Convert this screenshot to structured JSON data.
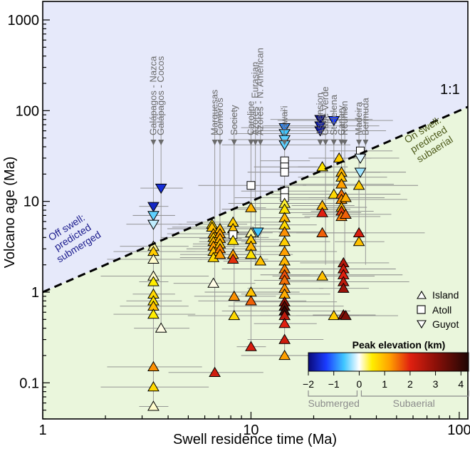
{
  "chart_data": {
    "type": "scatter",
    "xlabel": "Swell residence time (Ma)",
    "ylabel": "Volcano age (Ma)",
    "xscale": "log",
    "yscale": "log",
    "xlim": [
      1,
      110
    ],
    "ylim": [
      0.04,
      1600
    ],
    "x_ticks": [
      {
        "value": 1,
        "label": "1"
      },
      {
        "value": 10,
        "label": "10"
      },
      {
        "value": 100,
        "label": "100"
      }
    ],
    "y_ticks": [
      {
        "value": 0.1,
        "label": "0.1"
      },
      {
        "value": 1,
        "label": "1"
      },
      {
        "value": 10,
        "label": "10"
      },
      {
        "value": 100,
        "label": "100"
      },
      {
        "value": 1000,
        "label": "1000"
      }
    ],
    "one_to_one_label": "1:1",
    "region_upper": {
      "lines": [
        "Off swell:",
        "predicted",
        "submerged"
      ],
      "color": "#1a1a8c",
      "fill": "#e6e9fa"
    },
    "region_lower": {
      "lines": [
        "On swell:",
        "predicted",
        "subaerial"
      ],
      "color": "#4d5a1a",
      "fill": "#eaf6dc"
    },
    "legend": [
      {
        "marker": "triangle-up",
        "label": "Island"
      },
      {
        "marker": "square",
        "label": "Atoll"
      },
      {
        "marker": "triangle-down",
        "label": "Guyot"
      }
    ],
    "colorbar": {
      "title": "Peak elevation (km)",
      "min": -2,
      "max": 4.3,
      "ticks": [
        {
          "value": -2,
          "label": "−2"
        },
        {
          "value": -1,
          "label": "−1"
        },
        {
          "value": 0,
          "label": "0"
        },
        {
          "value": 1,
          "label": "1"
        },
        {
          "value": 2,
          "label": "2"
        },
        {
          "value": 3,
          "label": "3"
        },
        {
          "value": 4,
          "label": "4"
        }
      ],
      "group_submerged": "Submerged",
      "group_subaerial": "Subaerial",
      "stops": [
        {
          "v": -2,
          "c": "#0a0a78"
        },
        {
          "v": -1.3,
          "c": "#1a3cff"
        },
        {
          "v": -0.6,
          "c": "#3fc6ff"
        },
        {
          "v": 0,
          "c": "#ffffff"
        },
        {
          "v": 0.5,
          "c": "#ffee00"
        },
        {
          "v": 1.2,
          "c": "#ffa000"
        },
        {
          "v": 2,
          "c": "#e02010"
        },
        {
          "v": 3,
          "c": "#8c1008"
        },
        {
          "v": 4.3,
          "c": "#1e0604"
        }
      ]
    },
    "hotspots": [
      {
        "name": "Galápagos - Nazca",
        "x": 3.4
      },
      {
        "name": "Galápagos - Cocos",
        "x": 3.7
      },
      {
        "name": "Marquesas",
        "x": 6.7
      },
      {
        "name": "Comoros",
        "x": 7.1
      },
      {
        "name": "Society",
        "x": 8.3
      },
      {
        "name": "Caroline",
        "x": 10.0
      },
      {
        "name": "Azores - Eurasian",
        "x": 10.5
      },
      {
        "name": "Azores - N. American",
        "x": 11.1
      },
      {
        "name": "Hawai'i",
        "x": 14.5
      },
      {
        "name": "Ascension",
        "x": 21.5
      },
      {
        "name": "Cape Verde",
        "x": 22.8
      },
      {
        "name": "St Helena",
        "x": 25.0
      },
      {
        "name": "Canary",
        "x": 27.2
      },
      {
        "name": "Réunion",
        "x": 28.2
      },
      {
        "name": "Madeira",
        "x": 33.0
      },
      {
        "name": "Bermuda",
        "x": 35.5
      }
    ],
    "points": [
      {
        "x": 3.4,
        "y": 8.8,
        "m": "down",
        "e": -1.6
      },
      {
        "x": 3.4,
        "y": 7.0,
        "m": "down",
        "e": -0.5
      },
      {
        "x": 3.4,
        "y": 5.6,
        "m": "down",
        "e": -0.2
      },
      {
        "x": 3.4,
        "y": 3.2,
        "m": "up",
        "e": 0.2
      },
      {
        "x": 3.4,
        "y": 2.8,
        "m": "up",
        "e": 0.8
      },
      {
        "x": 3.4,
        "y": 2.3,
        "m": "up",
        "e": 0.1
      },
      {
        "x": 3.4,
        "y": 1.5,
        "m": "up",
        "e": 0.1
      },
      {
        "x": 3.4,
        "y": 1.3,
        "m": "up",
        "e": 0.5
      },
      {
        "x": 3.4,
        "y": 0.95,
        "m": "up",
        "e": 0.7
      },
      {
        "x": 3.4,
        "y": 0.8,
        "m": "up",
        "e": 0.6
      },
      {
        "x": 3.4,
        "y": 0.7,
        "m": "up",
        "e": 0.9
      },
      {
        "x": 3.4,
        "y": 0.57,
        "m": "up",
        "e": 0.5
      },
      {
        "x": 3.4,
        "y": 0.15,
        "m": "up",
        "e": 1.3
      },
      {
        "x": 3.4,
        "y": 0.09,
        "m": "up",
        "e": 0.7
      },
      {
        "x": 3.4,
        "y": 0.055,
        "m": "up",
        "e": 0.1
      },
      {
        "x": 3.7,
        "y": 14.0,
        "m": "down",
        "e": -1.5
      },
      {
        "x": 3.7,
        "y": 0.4,
        "m": "up",
        "e": 0.05
      },
      {
        "x": 6.5,
        "y": 5.6,
        "m": "up",
        "e": 0.7
      },
      {
        "x": 6.5,
        "y": 5.2,
        "m": "up",
        "e": 0.9
      },
      {
        "x": 6.6,
        "y": 4.4,
        "m": "up",
        "e": 1.1
      },
      {
        "x": 6.6,
        "y": 4.0,
        "m": "up",
        "e": 0.8
      },
      {
        "x": 6.6,
        "y": 3.6,
        "m": "up",
        "e": 1.0
      },
      {
        "x": 6.6,
        "y": 3.2,
        "m": "up",
        "e": 1.2
      },
      {
        "x": 6.6,
        "y": 2.8,
        "m": "up",
        "e": 0.9
      },
      {
        "x": 6.6,
        "y": 2.4,
        "m": "up",
        "e": 0.7
      },
      {
        "x": 6.6,
        "y": 1.25,
        "m": "up",
        "e": 0.05
      },
      {
        "x": 6.7,
        "y": 0.13,
        "m": "up",
        "e": 2.2
      },
      {
        "x": 7.1,
        "y": 5.0,
        "m": "up",
        "e": 1.0
      },
      {
        "x": 7.1,
        "y": 4.4,
        "m": "up",
        "e": 1.2
      },
      {
        "x": 7.1,
        "y": 3.9,
        "m": "up",
        "e": 1.1
      },
      {
        "x": 7.1,
        "y": 3.4,
        "m": "up",
        "e": 0.9
      },
      {
        "x": 7.1,
        "y": 3.0,
        "m": "up",
        "e": 1.4
      },
      {
        "x": 7.1,
        "y": 2.6,
        "m": "up",
        "e": 1.2
      },
      {
        "x": 8.2,
        "y": 5.9,
        "m": "up",
        "e": 0.8
      },
      {
        "x": 8.2,
        "y": 5.0,
        "m": "up",
        "e": 0.9
      },
      {
        "x": 8.2,
        "y": 4.3,
        "m": "sq",
        "e": 0.0
      },
      {
        "x": 8.2,
        "y": 3.7,
        "m": "up",
        "e": 0.6
      },
      {
        "x": 8.2,
        "y": 2.6,
        "m": "up",
        "e": 1.2
      },
      {
        "x": 8.2,
        "y": 2.3,
        "m": "up",
        "e": 1.9
      },
      {
        "x": 8.3,
        "y": 0.9,
        "m": "up",
        "e": 1.3
      },
      {
        "x": 8.3,
        "y": 0.55,
        "m": "up",
        "e": 0.7
      },
      {
        "x": 10.0,
        "y": 15.0,
        "m": "sq",
        "e": 0.5
      },
      {
        "x": 10.0,
        "y": 8.5,
        "m": "up",
        "e": 1.0
      },
      {
        "x": 10.0,
        "y": 4.5,
        "m": "up",
        "e": 0.2
      },
      {
        "x": 10.0,
        "y": 3.8,
        "m": "up",
        "e": 0.8
      },
      {
        "x": 10.0,
        "y": 3.2,
        "m": "up",
        "e": 1.0
      },
      {
        "x": 10.0,
        "y": 2.6,
        "m": "up",
        "e": 0.6
      },
      {
        "x": 10.0,
        "y": 1.0,
        "m": "up",
        "e": 0.9
      },
      {
        "x": 10.0,
        "y": 0.8,
        "m": "up",
        "e": 1.6
      },
      {
        "x": 10.0,
        "y": 0.25,
        "m": "up",
        "e": 2.1
      },
      {
        "x": 10.8,
        "y": 4.6,
        "m": "down",
        "e": -0.6
      },
      {
        "x": 11.1,
        "y": 2.2,
        "m": "up",
        "e": 0.9
      },
      {
        "x": 14.5,
        "y": 65.0,
        "m": "down",
        "e": -0.9
      },
      {
        "x": 14.5,
        "y": 56.0,
        "m": "down",
        "e": -0.6
      },
      {
        "x": 14.5,
        "y": 48.0,
        "m": "down",
        "e": -0.5
      },
      {
        "x": 14.5,
        "y": 42.0,
        "m": "down",
        "e": -0.5
      },
      {
        "x": 14.5,
        "y": 28.0,
        "m": "sq",
        "e": 0.0
      },
      {
        "x": 14.5,
        "y": 24.0,
        "m": "sq",
        "e": 0.0
      },
      {
        "x": 14.5,
        "y": 21.0,
        "m": "sq",
        "e": 0.0
      },
      {
        "x": 14.5,
        "y": 13.0,
        "m": "sq",
        "e": 0.0
      },
      {
        "x": 14.5,
        "y": 11.0,
        "m": "sq",
        "e": 0.0
      },
      {
        "x": 14.5,
        "y": 9.5,
        "m": "up",
        "e": 0.4
      },
      {
        "x": 14.5,
        "y": 8.2,
        "m": "up",
        "e": 0.6
      },
      {
        "x": 14.5,
        "y": 6.6,
        "m": "up",
        "e": 1.0
      },
      {
        "x": 14.5,
        "y": 5.5,
        "m": "up",
        "e": 0.7
      },
      {
        "x": 14.5,
        "y": 4.6,
        "m": "up",
        "e": 1.3
      },
      {
        "x": 14.5,
        "y": 3.6,
        "m": "up",
        "e": 0.8
      },
      {
        "x": 14.5,
        "y": 2.8,
        "m": "up",
        "e": 1.2
      },
      {
        "x": 14.5,
        "y": 2.2,
        "m": "up",
        "e": 1.0
      },
      {
        "x": 14.5,
        "y": 1.8,
        "m": "up",
        "e": 1.4
      },
      {
        "x": 14.5,
        "y": 1.55,
        "m": "up",
        "e": 1.7
      },
      {
        "x": 14.5,
        "y": 1.35,
        "m": "up",
        "e": 1.5
      },
      {
        "x": 14.5,
        "y": 1.1,
        "m": "up",
        "e": 1.3
      },
      {
        "x": 14.5,
        "y": 0.95,
        "m": "up",
        "e": 1.1
      },
      {
        "x": 14.5,
        "y": 0.78,
        "m": "up",
        "e": 2.9
      },
      {
        "x": 14.5,
        "y": 0.7,
        "m": "up",
        "e": 3.6
      },
      {
        "x": 14.5,
        "y": 0.62,
        "m": "up",
        "e": 4.0
      },
      {
        "x": 14.5,
        "y": 0.55,
        "m": "up",
        "e": 2.4
      },
      {
        "x": 14.5,
        "y": 0.45,
        "m": "up",
        "e": 2.0
      },
      {
        "x": 14.5,
        "y": 0.3,
        "m": "up",
        "e": 2.2
      },
      {
        "x": 14.5,
        "y": 0.2,
        "m": "up",
        "e": 1.2
      },
      {
        "x": 21.5,
        "y": 80.0,
        "m": "down",
        "e": -1.9
      },
      {
        "x": 21.5,
        "y": 68.0,
        "m": "down",
        "e": -1.7
      },
      {
        "x": 21.5,
        "y": 60.0,
        "m": "down",
        "e": -1.8
      },
      {
        "x": 22.0,
        "y": 24.0,
        "m": "up",
        "e": 0.6
      },
      {
        "x": 22.0,
        "y": 9.0,
        "m": "up",
        "e": 1.0
      },
      {
        "x": 22.0,
        "y": 7.5,
        "m": "up",
        "e": 2.0
      },
      {
        "x": 22.0,
        "y": 4.5,
        "m": "up",
        "e": 1.6
      },
      {
        "x": 22.0,
        "y": 1.5,
        "m": "up",
        "e": 0.9
      },
      {
        "x": 25.0,
        "y": 78.0,
        "m": "down",
        "e": -1.3
      },
      {
        "x": 25.0,
        "y": 12.0,
        "m": "up",
        "e": 0.7
      },
      {
        "x": 25.0,
        "y": 0.55,
        "m": "up",
        "e": 0.8
      },
      {
        "x": 26.5,
        "y": 30.0,
        "m": "up",
        "e": 0.8
      },
      {
        "x": 27.2,
        "y": 21.0,
        "m": "up",
        "e": 1.0
      },
      {
        "x": 27.2,
        "y": 18.5,
        "m": "up",
        "e": 0.9
      },
      {
        "x": 27.2,
        "y": 15.5,
        "m": "up",
        "e": 1.2
      },
      {
        "x": 27.2,
        "y": 12.0,
        "m": "up",
        "e": 1.5
      },
      {
        "x": 27.2,
        "y": 10.5,
        "m": "up",
        "e": 1.3
      },
      {
        "x": 27.2,
        "y": 8.6,
        "m": "up",
        "e": 1.0
      },
      {
        "x": 27.2,
        "y": 7.8,
        "m": "up",
        "e": 1.8
      },
      {
        "x": 27.2,
        "y": 6.8,
        "m": "up",
        "e": 1.4
      },
      {
        "x": 27.8,
        "y": 2.1,
        "m": "up",
        "e": 2.5
      },
      {
        "x": 27.8,
        "y": 1.8,
        "m": "up",
        "e": 2.2
      },
      {
        "x": 27.8,
        "y": 1.55,
        "m": "up",
        "e": 2.0
      },
      {
        "x": 27.8,
        "y": 1.3,
        "m": "up",
        "e": 2.4
      },
      {
        "x": 27.8,
        "y": 1.1,
        "m": "up",
        "e": 2.8
      },
      {
        "x": 27.8,
        "y": 0.56,
        "m": "up",
        "e": 3.0
      },
      {
        "x": 28.5,
        "y": 11.0,
        "m": "up",
        "e": 1.1
      },
      {
        "x": 28.5,
        "y": 7.2,
        "m": "up",
        "e": 1.6
      },
      {
        "x": 28.5,
        "y": 0.55,
        "m": "up",
        "e": 3.2
      },
      {
        "x": 33.0,
        "y": 15.0,
        "m": "up",
        "e": 0.8
      },
      {
        "x": 33.0,
        "y": 4.5,
        "m": "up",
        "e": 2.1
      },
      {
        "x": 33.0,
        "y": 3.6,
        "m": "up",
        "e": 0.9
      },
      {
        "x": 33.5,
        "y": 36.0,
        "m": "sq",
        "e": 0.0
      },
      {
        "x": 33.5,
        "y": 30.0,
        "m": "down",
        "e": -0.1
      },
      {
        "x": 33.5,
        "y": 21.0,
        "m": "down",
        "e": -0.3
      }
    ]
  }
}
